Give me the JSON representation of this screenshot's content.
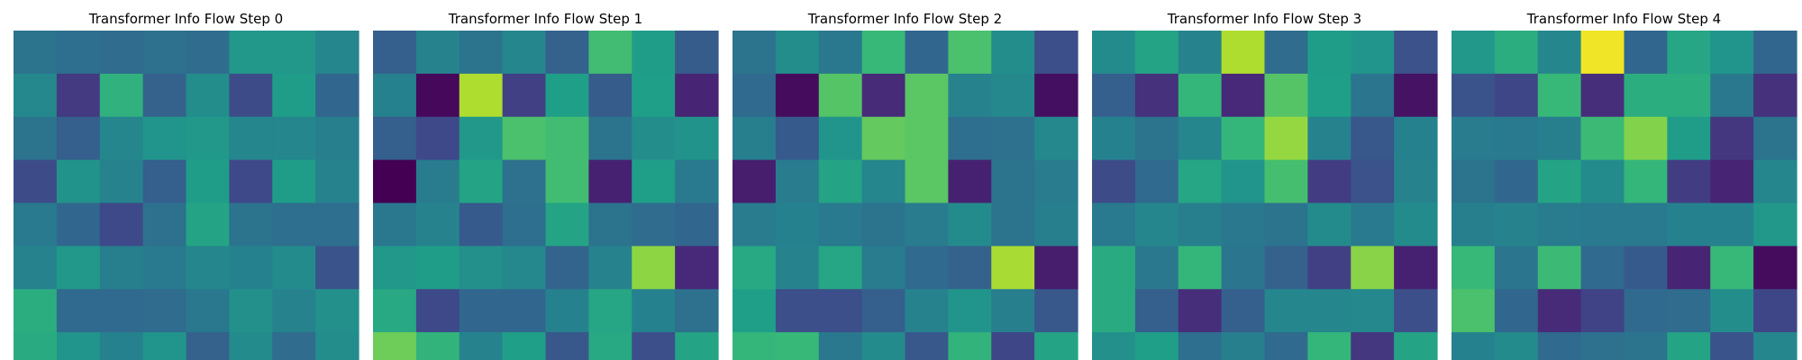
{
  "chart_data": [
    {
      "type": "heatmap",
      "title": "Transformer Info Flow Step 0",
      "colormap": "viridis",
      "vmin": 0,
      "vmax": 1,
      "values": [
        [
          0.38,
          0.36,
          0.35,
          0.37,
          0.35,
          0.53,
          0.53,
          0.46
        ],
        [
          0.47,
          0.17,
          0.64,
          0.31,
          0.49,
          0.23,
          0.55,
          0.33
        ],
        [
          0.38,
          0.3,
          0.46,
          0.52,
          0.53,
          0.46,
          0.46,
          0.43
        ],
        [
          0.23,
          0.51,
          0.45,
          0.3,
          0.55,
          0.22,
          0.55,
          0.45
        ],
        [
          0.41,
          0.33,
          0.22,
          0.37,
          0.58,
          0.38,
          0.36,
          0.36
        ],
        [
          0.45,
          0.53,
          0.43,
          0.41,
          0.46,
          0.44,
          0.48,
          0.26
        ],
        [
          0.62,
          0.34,
          0.34,
          0.35,
          0.4,
          0.5,
          0.45,
          0.5
        ],
        [
          0.61,
          0.52,
          0.44,
          0.52,
          0.31,
          0.48,
          0.35,
          0.49
        ]
      ]
    },
    {
      "type": "heatmap",
      "title": "Transformer Info Flow Step 1",
      "colormap": "viridis",
      "vmin": 0,
      "vmax": 1,
      "values": [
        [
          0.3,
          0.45,
          0.38,
          0.46,
          0.31,
          0.69,
          0.55,
          0.29
        ],
        [
          0.44,
          0.02,
          0.88,
          0.19,
          0.56,
          0.29,
          0.56,
          0.1
        ],
        [
          0.3,
          0.22,
          0.53,
          0.71,
          0.69,
          0.38,
          0.49,
          0.51
        ],
        [
          0.0,
          0.42,
          0.58,
          0.37,
          0.69,
          0.09,
          0.56,
          0.41
        ],
        [
          0.4,
          0.45,
          0.28,
          0.36,
          0.58,
          0.38,
          0.35,
          0.33
        ],
        [
          0.53,
          0.55,
          0.5,
          0.47,
          0.32,
          0.45,
          0.83,
          0.11
        ],
        [
          0.6,
          0.22,
          0.33,
          0.33,
          0.44,
          0.59,
          0.44,
          0.37
        ],
        [
          0.78,
          0.65,
          0.45,
          0.56,
          0.27,
          0.6,
          0.24,
          0.58
        ]
      ]
    },
    {
      "type": "heatmap",
      "title": "Transformer Info Flow Step 2",
      "colormap": "viridis",
      "vmin": 0,
      "vmax": 1,
      "values": [
        [
          0.38,
          0.49,
          0.4,
          0.67,
          0.33,
          0.71,
          0.49,
          0.24
        ],
        [
          0.34,
          0.03,
          0.73,
          0.12,
          0.74,
          0.45,
          0.47,
          0.04
        ],
        [
          0.43,
          0.28,
          0.52,
          0.76,
          0.74,
          0.36,
          0.37,
          0.47
        ],
        [
          0.08,
          0.42,
          0.58,
          0.46,
          0.74,
          0.09,
          0.38,
          0.42
        ],
        [
          0.42,
          0.44,
          0.41,
          0.38,
          0.42,
          0.48,
          0.38,
          0.43
        ],
        [
          0.6,
          0.45,
          0.59,
          0.42,
          0.34,
          0.31,
          0.87,
          0.08
        ],
        [
          0.56,
          0.24,
          0.24,
          0.3,
          0.45,
          0.52,
          0.43,
          0.27
        ],
        [
          0.66,
          0.67,
          0.4,
          0.48,
          0.27,
          0.65,
          0.21,
          0.58
        ]
      ]
    },
    {
      "type": "heatmap",
      "title": "Transformer Info Flow Step 3",
      "colormap": "viridis",
      "vmin": 0,
      "vmax": 1,
      "values": [
        [
          0.48,
          0.58,
          0.45,
          0.88,
          0.35,
          0.55,
          0.52,
          0.25
        ],
        [
          0.3,
          0.14,
          0.66,
          0.11,
          0.73,
          0.56,
          0.39,
          0.05
        ],
        [
          0.44,
          0.38,
          0.46,
          0.66,
          0.84,
          0.45,
          0.27,
          0.44
        ],
        [
          0.23,
          0.34,
          0.59,
          0.52,
          0.7,
          0.18,
          0.25,
          0.45
        ],
        [
          0.41,
          0.46,
          0.43,
          0.4,
          0.38,
          0.48,
          0.41,
          0.48
        ],
        [
          0.61,
          0.4,
          0.66,
          0.39,
          0.31,
          0.19,
          0.82,
          0.09
        ],
        [
          0.61,
          0.3,
          0.13,
          0.3,
          0.46,
          0.46,
          0.47,
          0.24
        ],
        [
          0.5,
          0.56,
          0.36,
          0.43,
          0.34,
          0.66,
          0.16,
          0.58
        ]
      ]
    },
    {
      "type": "heatmap",
      "title": "Transformer Info Flow Step 4",
      "colormap": "viridis",
      "vmin": 0,
      "vmax": 1,
      "values": [
        [
          0.53,
          0.62,
          0.46,
          0.98,
          0.33,
          0.59,
          0.52,
          0.33
        ],
        [
          0.26,
          0.21,
          0.67,
          0.13,
          0.62,
          0.62,
          0.4,
          0.14
        ],
        [
          0.42,
          0.41,
          0.43,
          0.68,
          0.81,
          0.55,
          0.16,
          0.38
        ],
        [
          0.38,
          0.33,
          0.58,
          0.48,
          0.66,
          0.18,
          0.1,
          0.46
        ],
        [
          0.43,
          0.45,
          0.42,
          0.41,
          0.41,
          0.44,
          0.44,
          0.53
        ],
        [
          0.67,
          0.39,
          0.68,
          0.34,
          0.28,
          0.1,
          0.67,
          0.03
        ],
        [
          0.71,
          0.33,
          0.12,
          0.2,
          0.34,
          0.35,
          0.49,
          0.21
        ],
        [
          0.44,
          0.48,
          0.34,
          0.37,
          0.38,
          0.58,
          0.26,
          0.46
        ]
      ]
    }
  ]
}
